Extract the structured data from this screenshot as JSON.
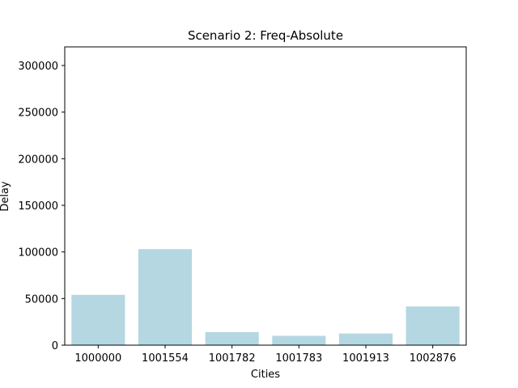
{
  "chart_data": {
    "type": "bar",
    "title": "Scenario 2: Freq-Absolute",
    "xlabel": "Cities",
    "ylabel": "Delay",
    "categories": [
      "1000000",
      "1001554",
      "1001782",
      "1001783",
      "1001913",
      "1002876"
    ],
    "values": [
      54000,
      103000,
      14000,
      10000,
      12500,
      41500
    ],
    "ylim": [
      0,
      320000
    ],
    "yticks": [
      0,
      50000,
      100000,
      150000,
      200000,
      250000,
      300000
    ],
    "bar_color": "#b4d7e2",
    "grid": false,
    "legend": false
  }
}
